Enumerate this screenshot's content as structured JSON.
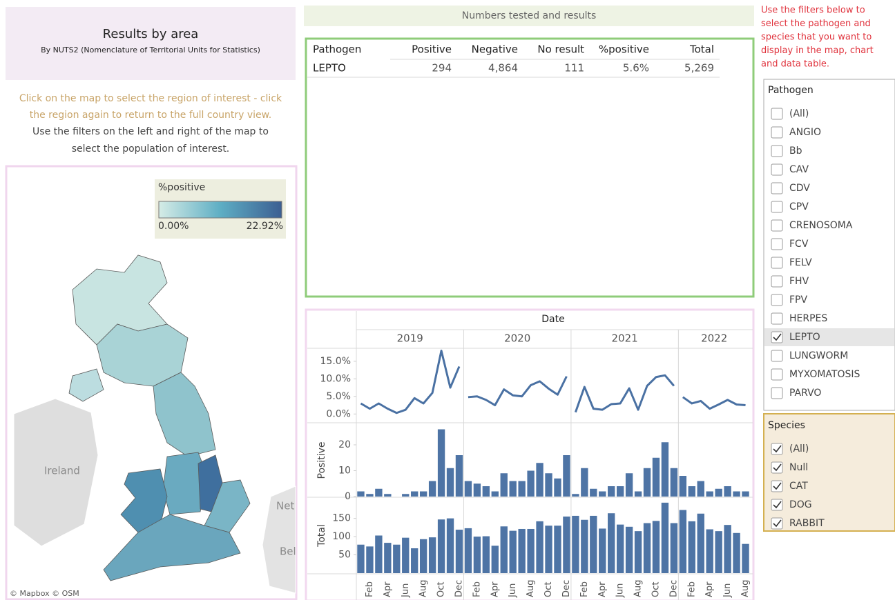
{
  "header": {
    "title": "Results by area",
    "subtitle": "By NUTS2 (Nomenclature of Territorial Units for Statistics)"
  },
  "instructions": [
    "Click on the map to select the region of interest - click",
    "the region again to return to the full country view.",
    "Use the filters on the left and right of the map to",
    "select the population of interest."
  ],
  "map": {
    "legend_title": "%positive",
    "legend_min": "0.00%",
    "legend_max": "22.92%",
    "labels": [
      "Ireland",
      "Net",
      "Bel"
    ],
    "credit": "© Mapbox © OSM"
  },
  "table": {
    "title": "Numbers tested and results",
    "columns": [
      "Pathogen",
      "Positive",
      "Negative",
      "No result",
      "%positive",
      "Total"
    ],
    "rows": [
      [
        "LEPTO",
        "294",
        "4,864",
        "111",
        "5.6%",
        "5,269"
      ]
    ]
  },
  "chart_data": [
    {
      "type": "line",
      "x_title": "Date",
      "years": [
        "2019",
        "2020",
        "2021",
        "2022"
      ],
      "color": "#4a71a3",
      "values": [
        3.0,
        1.5,
        3.0,
        1.5,
        0.3,
        1.2,
        4.5,
        3.0,
        6.0,
        18.0,
        7.5,
        13.5,
        4.8,
        5.0,
        4.0,
        2.5,
        7.0,
        5.3,
        5.0,
        8.2,
        9.3,
        7.2,
        5.5,
        10.7,
        0.5,
        7.7,
        1.5,
        1.2,
        2.8,
        3.0,
        7.3,
        1.2,
        8.0,
        10.5,
        11.0,
        8.0,
        4.8,
        3.0,
        3.7,
        1.5,
        2.7,
        4.0,
        2.7,
        2.5
      ],
      "ylim": [
        -2.3,
        18.3
      ],
      "yticks": [
        {
          "value": 0,
          "label": "0.0%"
        },
        {
          "value": 5,
          "label": "5.0%"
        },
        {
          "value": 10,
          "label": "10.0%"
        },
        {
          "value": 15,
          "label": "15.0%"
        }
      ]
    },
    {
      "type": "bar",
      "y_title": "Positive",
      "color": "#4e74a5",
      "values": [
        2,
        1,
        3,
        1,
        0,
        1,
        2,
        2,
        6,
        26,
        11,
        16,
        6,
        5,
        4,
        2,
        9,
        6,
        6,
        10,
        13,
        9,
        7,
        16,
        1,
        11,
        3,
        2,
        4,
        4,
        9,
        2,
        11,
        15,
        21,
        11,
        8,
        4,
        6,
        2,
        3,
        4,
        2,
        2
      ],
      "ylim": [
        0,
        28
      ],
      "yticks": [
        0,
        10,
        20
      ]
    },
    {
      "type": "bar",
      "y_title": "Total",
      "color": "#4e74a5",
      "categories": [
        null,
        "Feb",
        null,
        "Apr",
        null,
        "Jun",
        null,
        "Aug",
        null,
        "Oct",
        null,
        "Dec",
        null,
        "Feb",
        null,
        "Apr",
        null,
        "Jun",
        null,
        "Aug",
        null,
        "Oct",
        null,
        "Dec",
        null,
        "Feb",
        null,
        "Apr",
        null,
        "Jun",
        null,
        "Aug",
        null,
        "Oct",
        null,
        "Dec",
        null,
        "Feb",
        null,
        "Apr",
        null,
        "Jun",
        null,
        "Aug"
      ],
      "values": [
        78,
        73,
        103,
        83,
        78,
        97,
        68,
        93,
        98,
        147,
        150,
        119,
        123,
        100,
        101,
        75,
        128,
        116,
        121,
        121,
        142,
        130,
        130,
        155,
        157,
        146,
        157,
        122,
        164,
        133,
        127,
        115,
        137,
        143,
        193,
        137,
        173,
        142,
        163,
        120,
        115,
        132,
        110,
        80
      ],
      "ylim": [
        0,
        206
      ],
      "yticks": [
        50,
        100,
        150
      ]
    }
  ],
  "filters": {
    "note": [
      "Use the filters below to",
      "select the pathogen and",
      "species that you want to",
      "display in the map, chart",
      "and data table."
    ],
    "pathogen": {
      "title": "Pathogen",
      "items": [
        {
          "label": "(All)",
          "checked": false
        },
        {
          "label": "ANGIO",
          "checked": false
        },
        {
          "label": "Bb",
          "checked": false
        },
        {
          "label": "CAV",
          "checked": false
        },
        {
          "label": "CDV",
          "checked": false
        },
        {
          "label": "CPV",
          "checked": false
        },
        {
          "label": "CRENOSOMA",
          "checked": false
        },
        {
          "label": "FCV",
          "checked": false
        },
        {
          "label": "FELV",
          "checked": false
        },
        {
          "label": "FHV",
          "checked": false
        },
        {
          "label": "FPV",
          "checked": false
        },
        {
          "label": "HERPES",
          "checked": false
        },
        {
          "label": "LEPTO",
          "checked": true
        },
        {
          "label": "LUNGWORM",
          "checked": false
        },
        {
          "label": "MYXOMATOSIS",
          "checked": false
        },
        {
          "label": "PARVO",
          "checked": false
        }
      ]
    },
    "species": {
      "title": "Species",
      "items": [
        {
          "label": "(All)",
          "checked": true
        },
        {
          "label": "Null",
          "checked": true
        },
        {
          "label": "CAT",
          "checked": true
        },
        {
          "label": "DOG",
          "checked": true
        },
        {
          "label": "RABBIT",
          "checked": true
        }
      ]
    }
  }
}
